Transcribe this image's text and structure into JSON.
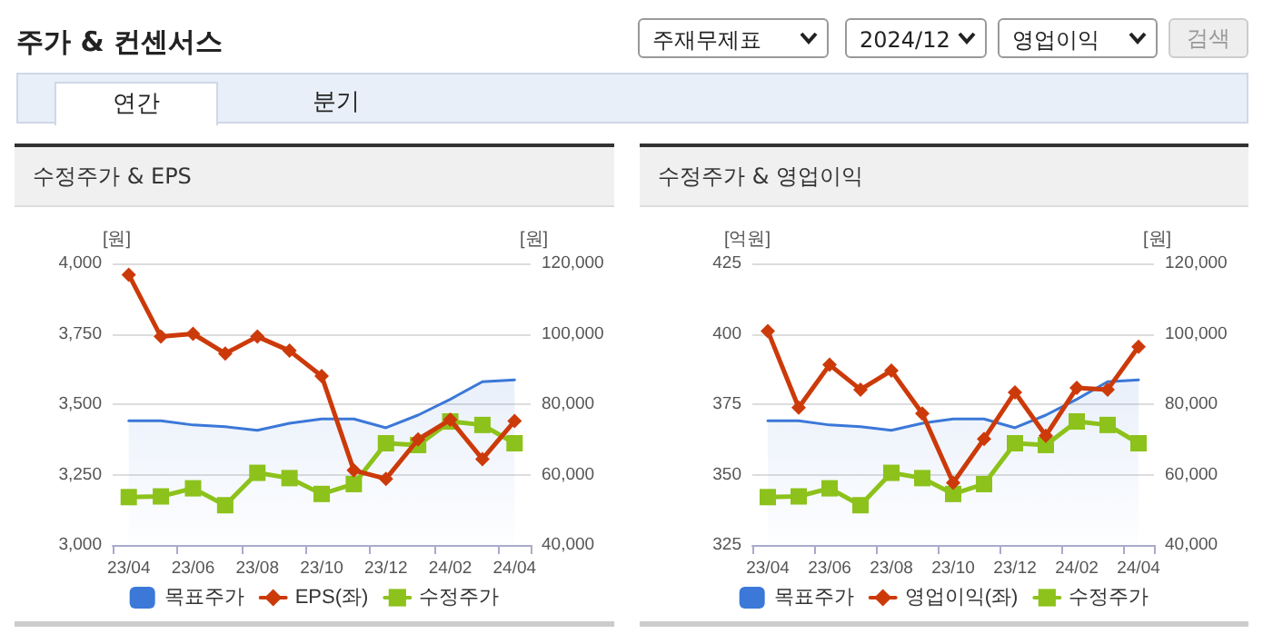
{
  "chart_data": [
    {
      "type": "other",
      "title": "주가 & 컨센서스",
      "annotations": [
        "주재무제표",
        "2024/12",
        "영업이익",
        "검색",
        "연간",
        "분기"
      ]
    },
    {
      "type": "line",
      "title": "수정주가 & EPS",
      "ylabel": "[원]",
      "y2label": "[원]",
      "categories": [
        "23/04",
        null,
        "23/06",
        null,
        "23/08",
        null,
        "23/10",
        null,
        "23/12",
        null,
        "24/02",
        null,
        "24/04"
      ],
      "series": [
        {
          "name": "목표주가",
          "type": "area",
          "axis": "y2",
          "color": "#3b78d8",
          "marker": "none",
          "values": [
            75300,
            75300,
            74100,
            73600,
            72600,
            74600,
            75800,
            75800,
            73300,
            76900,
            81400,
            86400,
            86900
          ]
        },
        {
          "name": "EPS(좌)",
          "type": "line",
          "color": "#cc3a0a",
          "marker": "diamond",
          "values": [
            3960,
            3740,
            3750,
            3680,
            3740,
            3690,
            3600,
            3265,
            3235,
            3375,
            3445,
            3305,
            3440
          ]
        },
        {
          "name": "수정주가",
          "type": "line",
          "axis": "y2",
          "color": "#8cc21b",
          "marker": "square",
          "values": [
            53600,
            53800,
            56100,
            51300,
            60500,
            59000,
            54500,
            57300,
            68900,
            68400,
            75100,
            74100,
            68900
          ]
        }
      ],
      "ylim": [
        3000,
        4000
      ],
      "yticks": [
        {
          "value": 3000,
          "label": "3,000"
        },
        {
          "value": 3250,
          "label": "3,250"
        },
        {
          "value": 3500,
          "label": "3,500"
        },
        {
          "value": 3750,
          "label": "3,750"
        },
        {
          "value": 4000,
          "label": "4,000"
        }
      ],
      "y2lim": [
        40000,
        120000
      ],
      "y2ticks": [
        {
          "value": 40000,
          "label": "40,000"
        },
        {
          "value": 60000,
          "label": "60,000"
        },
        {
          "value": 80000,
          "label": "80,000"
        },
        {
          "value": 100000,
          "label": "100,000"
        },
        {
          "value": 120000,
          "label": "120,000"
        }
      ],
      "grid": "y",
      "legend": "bottom",
      "line_style": "solid"
    },
    {
      "type": "line",
      "title": "수정주가 & 영업이익",
      "ylabel": "[억원]",
      "y2label": "[원]",
      "categories": [
        "23/04",
        null,
        "23/06",
        null,
        "23/08",
        null,
        "23/10",
        null,
        "23/12",
        null,
        "24/02",
        null,
        "24/04"
      ],
      "series": [
        {
          "name": "목표주가",
          "type": "area",
          "axis": "y2",
          "color": "#3b78d8",
          "marker": "none",
          "values": [
            75300,
            75300,
            74100,
            73600,
            72600,
            74600,
            75800,
            75800,
            73300,
            76900,
            81400,
            86400,
            86900
          ]
        },
        {
          "name": "영업이익(좌)",
          "type": "line",
          "color": "#cc3a0a",
          "marker": "diamond",
          "values": [
            401,
            373.8,
            389,
            380.2,
            386.9,
            371.7,
            347.1,
            362.7,
            379.2,
            363.8,
            380.8,
            380.2,
            395.4
          ]
        },
        {
          "name": "수정주가",
          "type": "line",
          "axis": "y2",
          "color": "#8cc21b",
          "marker": "square",
          "values": [
            53600,
            53800,
            56100,
            51300,
            60500,
            59000,
            54500,
            57300,
            68900,
            68400,
            75100,
            74100,
            68900
          ]
        }
      ],
      "ylim": [
        325,
        425
      ],
      "yticks": [
        325,
        350,
        375,
        400,
        425
      ],
      "y2lim": [
        40000,
        120000
      ],
      "y2ticks": [
        {
          "value": 40000,
          "label": "40,000"
        },
        {
          "value": 60000,
          "label": "60,000"
        },
        {
          "value": 80000,
          "label": "80,000"
        },
        {
          "value": 100000,
          "label": "100,000"
        },
        {
          "value": 120000,
          "label": "120,000"
        }
      ],
      "grid": "y",
      "legend": "bottom",
      "line_style": "solid"
    }
  ]
}
